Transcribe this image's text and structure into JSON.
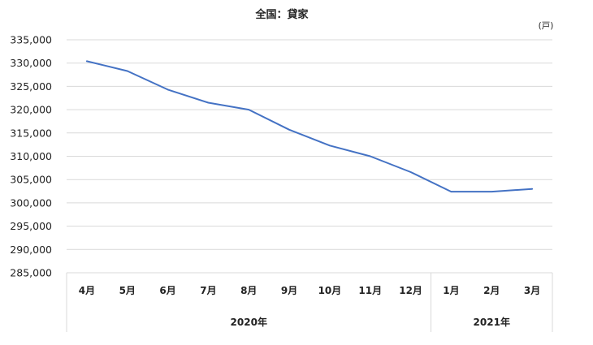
{
  "chart_data": {
    "type": "line",
    "title": "全国：貸家",
    "unit": "(戸)",
    "categories": [
      "4月",
      "5月",
      "6月",
      "7月",
      "8月",
      "9月",
      "10月",
      "11月",
      "12月",
      "1月",
      "2月",
      "3月"
    ],
    "groups": [
      {
        "label": "2020年",
        "span": 9
      },
      {
        "label": "2021年",
        "span": 3
      }
    ],
    "series": [
      {
        "values": [
          330400,
          328300,
          324300,
          321500,
          320000,
          315700,
          312300,
          310000,
          306600,
          302400,
          302400,
          303000
        ],
        "color": "#4472c4"
      }
    ],
    "ylim": [
      285000,
      335000
    ],
    "ytick_step": 5000,
    "ytick_labels": [
      "285,000",
      "290,000",
      "295,000",
      "300,000",
      "305,000",
      "310,000",
      "315,000",
      "320,000",
      "325,000",
      "330,000",
      "335,000"
    ],
    "grid": true,
    "gridColor": "#d9d9d9",
    "legend": "none"
  }
}
